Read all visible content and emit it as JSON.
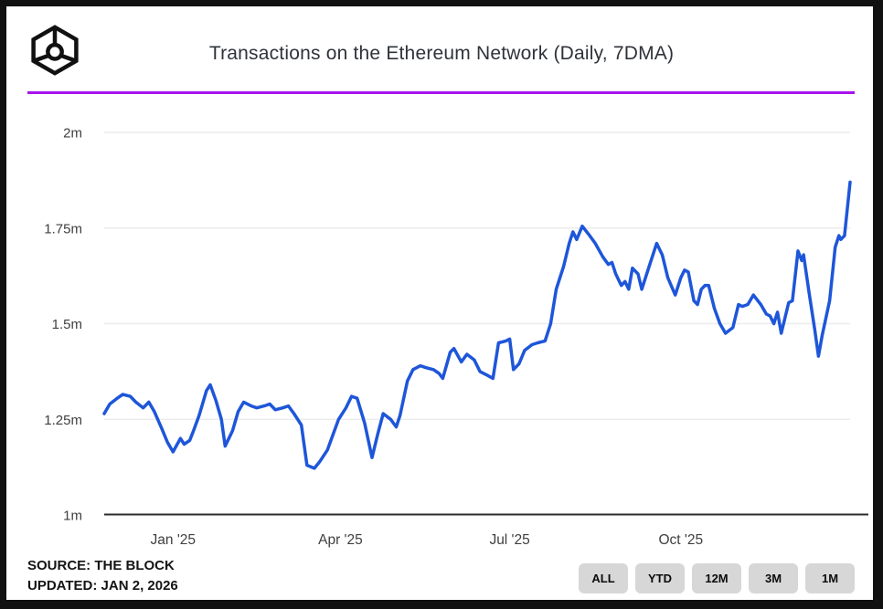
{
  "header": {
    "title": "Transactions on the Ethereum Network (Daily, 7DMA)",
    "logo": "the-block-logo"
  },
  "accent_colors": {
    "divider": "#A913EC",
    "line": "#1E56D9",
    "grid": "#ececec",
    "axis": "#2b2b2b",
    "tick_text": "#3f3f3f",
    "button_bg": "#d7d7d7"
  },
  "chart_data": {
    "type": "line",
    "title": "Transactions on the Ethereum Network (Daily, 7DMA)",
    "xlabel": "",
    "ylabel": "",
    "grid": "horizontal",
    "legend": "none",
    "ylim": [
      1.0,
      2.0
    ],
    "y_unit": "millions of transactions",
    "x_start_date": "2024-11-25",
    "x_span_days": 401,
    "x_ticks": [
      {
        "t": 37,
        "label": "Jan '25"
      },
      {
        "t": 127,
        "label": "Apr '25"
      },
      {
        "t": 218,
        "label": "Jul '25"
      },
      {
        "t": 310,
        "label": "Oct '25"
      }
    ],
    "y_ticks": [
      {
        "v": 1,
        "label": "1m"
      },
      {
        "v": 1.25,
        "label": "1.25m"
      },
      {
        "v": 1.5,
        "label": "1.5m"
      },
      {
        "v": 1.75,
        "label": "1.75m"
      },
      {
        "v": 2,
        "label": "2m"
      }
    ],
    "series": [
      {
        "name": "Ethereum daily transactions (7DMA, millions)",
        "points": [
          [
            0,
            1.265
          ],
          [
            3,
            1.29
          ],
          [
            7,
            1.305
          ],
          [
            10,
            1.315
          ],
          [
            14,
            1.31
          ],
          [
            17,
            1.295
          ],
          [
            21,
            1.28
          ],
          [
            24,
            1.295
          ],
          [
            27,
            1.27
          ],
          [
            31,
            1.225
          ],
          [
            34,
            1.19
          ],
          [
            37,
            1.165
          ],
          [
            41,
            1.2
          ],
          [
            43,
            1.185
          ],
          [
            46,
            1.195
          ],
          [
            48,
            1.22
          ],
          [
            51,
            1.26
          ],
          [
            55,
            1.325
          ],
          [
            57,
            1.34
          ],
          [
            60,
            1.3
          ],
          [
            63,
            1.25
          ],
          [
            65,
            1.18
          ],
          [
            69,
            1.22
          ],
          [
            72,
            1.27
          ],
          [
            75,
            1.295
          ],
          [
            79,
            1.285
          ],
          [
            82,
            1.28
          ],
          [
            86,
            1.285
          ],
          [
            89,
            1.29
          ],
          [
            92,
            1.275
          ],
          [
            96,
            1.28
          ],
          [
            99,
            1.285
          ],
          [
            102,
            1.265
          ],
          [
            106,
            1.235
          ],
          [
            109,
            1.13
          ],
          [
            113,
            1.122
          ],
          [
            116,
            1.14
          ],
          [
            120,
            1.17
          ],
          [
            123,
            1.21
          ],
          [
            126,
            1.25
          ],
          [
            130,
            1.28
          ],
          [
            133,
            1.31
          ],
          [
            136,
            1.305
          ],
          [
            140,
            1.24
          ],
          [
            144,
            1.15
          ],
          [
            147,
            1.21
          ],
          [
            150,
            1.265
          ],
          [
            154,
            1.25
          ],
          [
            157,
            1.23
          ],
          [
            159,
            1.26
          ],
          [
            163,
            1.35
          ],
          [
            166,
            1.38
          ],
          [
            170,
            1.39
          ],
          [
            173,
            1.385
          ],
          [
            177,
            1.38
          ],
          [
            180,
            1.37
          ],
          [
            182,
            1.357
          ],
          [
            186,
            1.425
          ],
          [
            188,
            1.435
          ],
          [
            192,
            1.4
          ],
          [
            195,
            1.42
          ],
          [
            199,
            1.405
          ],
          [
            202,
            1.375
          ],
          [
            206,
            1.365
          ],
          [
            209,
            1.357
          ],
          [
            212,
            1.45
          ],
          [
            216,
            1.455
          ],
          [
            218,
            1.46
          ],
          [
            220,
            1.38
          ],
          [
            223,
            1.395
          ],
          [
            226,
            1.43
          ],
          [
            230,
            1.445
          ],
          [
            233,
            1.45
          ],
          [
            237,
            1.455
          ],
          [
            240,
            1.5
          ],
          [
            243,
            1.59
          ],
          [
            247,
            1.65
          ],
          [
            250,
            1.71
          ],
          [
            252,
            1.74
          ],
          [
            254,
            1.72
          ],
          [
            257,
            1.755
          ],
          [
            261,
            1.73
          ],
          [
            264,
            1.71
          ],
          [
            268,
            1.675
          ],
          [
            271,
            1.655
          ],
          [
            273,
            1.66
          ],
          [
            275,
            1.63
          ],
          [
            278,
            1.6
          ],
          [
            280,
            1.61
          ],
          [
            282,
            1.59
          ],
          [
            284,
            1.645
          ],
          [
            287,
            1.63
          ],
          [
            289,
            1.59
          ],
          [
            293,
            1.65
          ],
          [
            297,
            1.71
          ],
          [
            300,
            1.68
          ],
          [
            303,
            1.62
          ],
          [
            307,
            1.575
          ],
          [
            310,
            1.62
          ],
          [
            312,
            1.64
          ],
          [
            314,
            1.635
          ],
          [
            317,
            1.56
          ],
          [
            319,
            1.55
          ],
          [
            321,
            1.59
          ],
          [
            323,
            1.6
          ],
          [
            325,
            1.6
          ],
          [
            328,
            1.54
          ],
          [
            331,
            1.5
          ],
          [
            334,
            1.475
          ],
          [
            338,
            1.49
          ],
          [
            341,
            1.55
          ],
          [
            343,
            1.545
          ],
          [
            346,
            1.55
          ],
          [
            349,
            1.575
          ],
          [
            353,
            1.55
          ],
          [
            356,
            1.525
          ],
          [
            358,
            1.52
          ],
          [
            360,
            1.5
          ],
          [
            362,
            1.53
          ],
          [
            364,
            1.475
          ],
          [
            368,
            1.555
          ],
          [
            370,
            1.56
          ],
          [
            373,
            1.69
          ],
          [
            375,
            1.665
          ],
          [
            376,
            1.68
          ],
          [
            379,
            1.58
          ],
          [
            382,
            1.485
          ],
          [
            384,
            1.415
          ],
          [
            386,
            1.47
          ],
          [
            390,
            1.56
          ],
          [
            393,
            1.7
          ],
          [
            395,
            1.73
          ],
          [
            396,
            1.72
          ],
          [
            398,
            1.73
          ],
          [
            401,
            1.87
          ]
        ]
      }
    ]
  },
  "footer": {
    "source": "SOURCE: THE BLOCK",
    "updated": "UPDATED: JAN 2, 2026"
  },
  "range_buttons": [
    {
      "label": "ALL"
    },
    {
      "label": "YTD"
    },
    {
      "label": "12M"
    },
    {
      "label": "3M"
    },
    {
      "label": "1M"
    }
  ]
}
